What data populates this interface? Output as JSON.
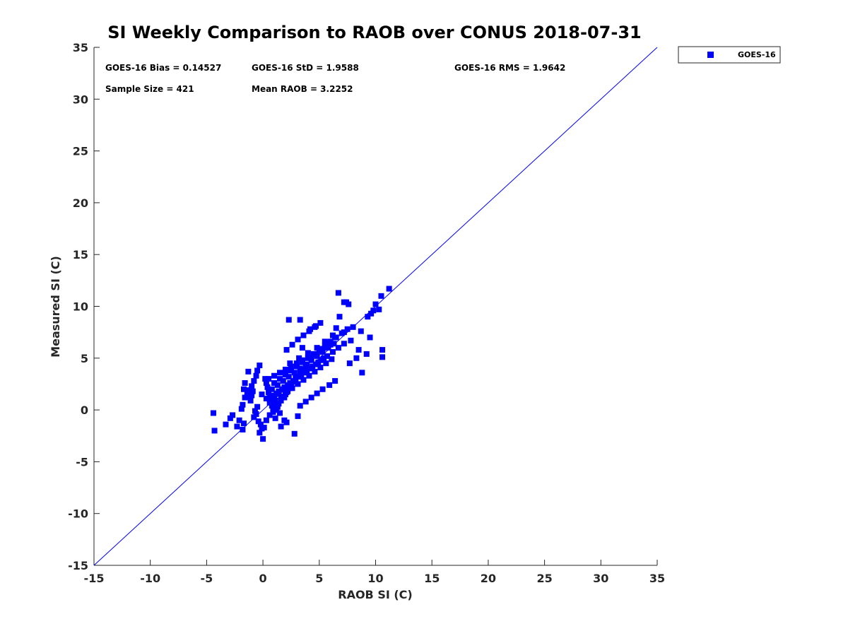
{
  "chart_data": {
    "type": "scatter",
    "title": "SI Weekly Comparison to RAOB over CONUS 2018-07-31",
    "xlabel": "RAOB SI (C)",
    "ylabel": "Measured SI (C)",
    "xlim": [
      -15,
      35
    ],
    "ylim": [
      -15,
      35
    ],
    "xticks": [
      -15,
      -10,
      -5,
      0,
      5,
      10,
      15,
      20,
      25,
      30,
      35
    ],
    "yticks": [
      -15,
      -10,
      -5,
      0,
      5,
      10,
      15,
      20,
      25,
      30,
      35
    ],
    "grid": false,
    "legend": {
      "position": "outside-top-right",
      "entries": [
        "GOES-16"
      ]
    },
    "annotations": [
      "GOES-16 Bias = 0.14527",
      "GOES-16 StD = 1.9588",
      "GOES-16 RMS = 1.9642",
      "Sample Size = 421",
      "Mean RAOB = 3.2252"
    ],
    "reference_line": {
      "name": "one-to-one",
      "from": [
        -15,
        -15
      ],
      "to": [
        35,
        35
      ],
      "color": "#0000ff"
    },
    "series": [
      {
        "name": "GOES-16",
        "color": "#0000ff",
        "marker": "square",
        "x": [
          -4.4,
          -4.3,
          -3.3,
          -2.9,
          -2.7,
          -2.3,
          -2.1,
          -1.8,
          -1.7,
          -1.7,
          -1.6,
          -1.3,
          -1.2,
          -1.0,
          -0.9,
          -0.8,
          -0.7,
          -0.6,
          -0.5,
          -0.4,
          -0.3,
          -0.2,
          -0.1,
          0.0,
          0.1,
          0.3,
          0.6,
          0.9,
          1.1,
          1.6,
          2.1,
          1.9,
          1.5,
          1.2,
          1.0,
          0.6,
          0.3,
          -0.1,
          2.8,
          3.1,
          6.7,
          7.2,
          7.4,
          7.6,
          10.0,
          11.2,
          10.5,
          10.3,
          9.8,
          9.6,
          9.3,
          10.6,
          10.6,
          9.5,
          8.7,
          6.8,
          9.2,
          8.8,
          8.5,
          8.3,
          7.8,
          7.7,
          6.5,
          6.2,
          5.5,
          5.1,
          4.8,
          4.3,
          3.9,
          3.6,
          3.3,
          2.9,
          2.7,
          2.5,
          2.4,
          2.2,
          2.0,
          1.9,
          1.6,
          1.4,
          1.3,
          1.1,
          0.9,
          0.8,
          0.7,
          0.6,
          0.5,
          0.4,
          0.3,
          0.2,
          -0.3,
          -0.5,
          -0.6,
          -0.8,
          -1.0,
          -1.2,
          -1.4,
          -1.6,
          1.0,
          1.5,
          2.0,
          2.5,
          3.0,
          3.5,
          4.0,
          4.5,
          5.0,
          5.5,
          6.0,
          6.5,
          7.0,
          7.5,
          1.2,
          1.7,
          2.2,
          2.7,
          3.2,
          3.7,
          4.2,
          4.7,
          5.2,
          5.7,
          6.2,
          6.7,
          7.2,
          0.8,
          1.3,
          1.8,
          2.3,
          2.8,
          3.3,
          3.8,
          4.3,
          4.8,
          5.3,
          5.8,
          6.3,
          1.1,
          1.6,
          2.1,
          2.6,
          3.1,
          3.6,
          4.1,
          4.6,
          5.1,
          5.6,
          6.1,
          0.6,
          1.0,
          1.4,
          1.9,
          2.4,
          2.9,
          3.4,
          3.9,
          4.4,
          4.9,
          5.4,
          2.1,
          2.6,
          3.1,
          3.6,
          4.1,
          4.6,
          5.1,
          3.3,
          3.8,
          4.3,
          4.8,
          5.3,
          5.9,
          6.4,
          2.3,
          3.3,
          4.2,
          4.7,
          3.5,
          -1.1,
          -1.3,
          -1.8,
          -1.9,
          2.4,
          3.2,
          4.0,
          4.8,
          5.6,
          6.4,
          7.2,
          8.0,
          0.5,
          1.0,
          1.5,
          2.0,
          2.5,
          3.0,
          3.5,
          4.0,
          4.5,
          5.0,
          5.5,
          6.0
        ],
        "y": [
          -0.3,
          -2.0,
          -1.4,
          -0.8,
          -0.5,
          -1.6,
          -1.0,
          -1.9,
          -1.3,
          2.0,
          2.6,
          3.7,
          1.9,
          1.4,
          1.8,
          -0.7,
          -0.1,
          -0.4,
          0.3,
          -1.1,
          -2.2,
          -1.4,
          -1.8,
          -2.8,
          -1.7,
          -1.0,
          -0.5,
          -0.1,
          -0.8,
          -1.6,
          -1.2,
          -1.0,
          -0.3,
          0.0,
          0.4,
          0.7,
          1.1,
          1.5,
          -2.3,
          -0.6,
          11.3,
          10.4,
          10.4,
          10.2,
          10.2,
          11.7,
          11.0,
          9.7,
          9.6,
          9.3,
          9.0,
          5.1,
          5.8,
          7.0,
          7.6,
          9.0,
          5.4,
          3.6,
          5.8,
          5.0,
          6.7,
          4.5,
          7.9,
          7.2,
          6.6,
          5.9,
          5.4,
          4.9,
          4.3,
          3.9,
          3.5,
          3.1,
          2.7,
          2.4,
          2.1,
          1.8,
          1.5,
          1.2,
          0.9,
          0.6,
          0.3,
          0.1,
          -0.2,
          0.4,
          0.9,
          1.3,
          1.7,
          2.2,
          2.6,
          3.0,
          4.3,
          3.8,
          3.3,
          2.8,
          2.3,
          1.9,
          1.5,
          1.2,
          2.6,
          3.0,
          3.4,
          3.8,
          4.2,
          4.6,
          5.0,
          5.4,
          5.8,
          6.2,
          6.6,
          7.0,
          7.4,
          7.8,
          1.6,
          2.0,
          2.4,
          2.8,
          3.2,
          3.6,
          4.0,
          4.4,
          4.8,
          5.2,
          5.6,
          6.0,
          6.4,
          2.0,
          2.4,
          2.8,
          3.2,
          3.6,
          4.0,
          4.4,
          4.8,
          5.2,
          5.6,
          6.0,
          6.4,
          0.9,
          1.3,
          1.7,
          2.1,
          2.5,
          2.9,
          3.3,
          3.7,
          4.1,
          4.5,
          4.9,
          1.0,
          1.4,
          1.8,
          2.2,
          2.6,
          3.0,
          3.4,
          3.8,
          4.2,
          4.6,
          5.0,
          5.8,
          6.3,
          6.8,
          7.2,
          7.6,
          8.0,
          8.4,
          0.4,
          0.8,
          1.2,
          1.6,
          2.0,
          2.4,
          2.8,
          8.7,
          8.7,
          7.8,
          8.1,
          6.0,
          0.9,
          1.3,
          0.5,
          0.1,
          4.5,
          5.0,
          5.5,
          6.0,
          6.5,
          7.0,
          7.5,
          8.0,
          3.0,
          3.3,
          3.6,
          3.9,
          4.2,
          4.5,
          4.8,
          5.1,
          5.4,
          5.7,
          6.0,
          6.3
        ]
      }
    ]
  }
}
